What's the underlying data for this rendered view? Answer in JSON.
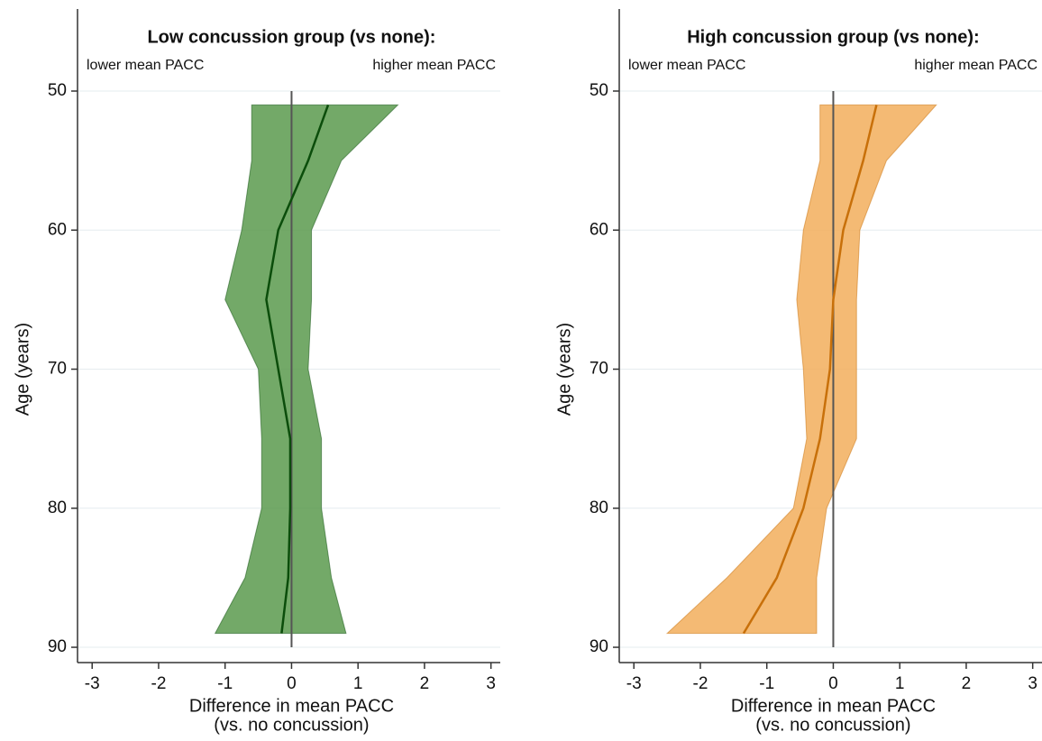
{
  "chart_data": [
    {
      "type": "line",
      "title": "Low concussion group (vs none):",
      "annotations": [
        "lower mean PACC",
        "higher mean PACC"
      ],
      "xlabel": [
        "Difference in mean PACC",
        "(vs. no concussion)"
      ],
      "ylabel": "Age (years)",
      "ages": [
        51,
        55,
        60,
        65,
        70,
        75,
        80,
        85,
        89
      ],
      "values": [
        0.55,
        0.25,
        -0.2,
        -0.38,
        -0.2,
        -0.02,
        -0.02,
        -0.05,
        -0.15
      ],
      "lower": [
        -0.6,
        -0.6,
        -0.75,
        -1.0,
        -0.5,
        -0.45,
        -0.45,
        -0.7,
        -1.15
      ],
      "upper": [
        1.6,
        0.75,
        0.3,
        0.3,
        0.25,
        0.45,
        0.45,
        0.6,
        0.82
      ],
      "color": "#0b4d0b",
      "band_color": "#5a9a4e",
      "xlim": [
        -3.22,
        3.14
      ],
      "xticks": [
        -3,
        -2,
        -1,
        0,
        1,
        2,
        3
      ],
      "ylim": [
        44.1,
        91.1
      ],
      "yticks": [
        50,
        60,
        70,
        80,
        90
      ],
      "y_inverted": true,
      "xline": 0,
      "grid": true
    },
    {
      "type": "line",
      "title": "High concussion group (vs none):",
      "annotations": [
        "lower mean PACC",
        "higher mean PACC"
      ],
      "xlabel": [
        "Difference in mean PACC",
        "(vs. no concussion)"
      ],
      "ylabel": "Age (years)",
      "ages": [
        51,
        55,
        60,
        65,
        70,
        75,
        80,
        85,
        89
      ],
      "values": [
        0.65,
        0.45,
        0.15,
        0.0,
        -0.05,
        -0.2,
        -0.45,
        -0.85,
        -1.35
      ],
      "lower": [
        -0.2,
        -0.2,
        -0.45,
        -0.55,
        -0.45,
        -0.4,
        -0.6,
        -1.6,
        -2.5
      ],
      "upper": [
        1.55,
        0.8,
        0.4,
        0.35,
        0.35,
        0.35,
        -0.1,
        -0.25,
        -0.25
      ],
      "color": "#c8700a",
      "band_color": "#f2ae5c",
      "xlim": [
        -3.22,
        3.14
      ],
      "xticks": [
        -3,
        -2,
        -1,
        0,
        1,
        2,
        3
      ],
      "ylim": [
        44.1,
        91.1
      ],
      "yticks": [
        50,
        60,
        70,
        80,
        90
      ],
      "y_inverted": true,
      "xline": 0,
      "grid": true
    }
  ]
}
